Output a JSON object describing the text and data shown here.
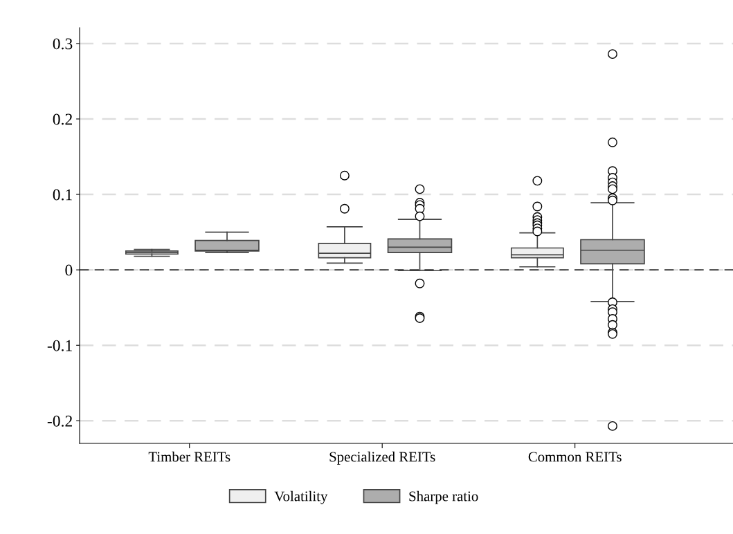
{
  "chart_data": {
    "type": "box",
    "categories": [
      "Timber REITs",
      "Specialized REITs",
      "Common REITs"
    ],
    "ylim": [
      -0.23,
      0.321
    ],
    "yticks": [
      {
        "value": -0.2,
        "label": "-0.2"
      },
      {
        "value": -0.1,
        "label": "-0.1"
      },
      0,
      0.1,
      0.2,
      0.3
    ],
    "grid": "y",
    "legend": "bottom",
    "marker": "circle",
    "ref_lines": [
      {
        "axis": "y",
        "value": 0,
        "color": "#333333",
        "line_style": "dashed"
      }
    ],
    "series": [
      {
        "name": "Volatility",
        "color": "#efefef",
        "boxes": [
          {
            "low": 0.018,
            "q1": 0.021,
            "median": 0.023,
            "q3": 0.025,
            "high": 0.027
          },
          {
            "low": 0.009,
            "q1": 0.016,
            "median": 0.022,
            "q3": 0.035,
            "high": 0.057,
            "outliers": [
              0.125,
              0.081
            ]
          },
          {
            "low": 0.004,
            "q1": 0.016,
            "median": 0.02,
            "q3": 0.029,
            "high": 0.049,
            "outliers": [
              0.118,
              0.084,
              0.07,
              0.066,
              0.062,
              0.059,
              0.055,
              0.051
            ]
          }
        ]
      },
      {
        "name": "Sharpe ratio",
        "color": "#adadad",
        "boxes": [
          {
            "low": 0.023,
            "q1": 0.025,
            "median": 0.026,
            "q3": 0.039,
            "high": 0.05
          },
          {
            "low": -0.001,
            "q1": 0.023,
            "median": 0.03,
            "q3": 0.041,
            "high": 0.067,
            "outliers": [
              0.107,
              0.089,
              0.086,
              0.081,
              0.071,
              -0.018,
              -0.062,
              -0.064
            ]
          },
          {
            "low": -0.042,
            "q1": 0.008,
            "median": 0.026,
            "q3": 0.04,
            "high": 0.089,
            "outliers": [
              0.286,
              0.169,
              0.131,
              0.122,
              0.116,
              0.111,
              0.107,
              0.095,
              0.092,
              -0.043,
              -0.052,
              -0.056,
              -0.065,
              -0.073,
              -0.083,
              -0.085,
              -0.207
            ]
          }
        ]
      }
    ]
  }
}
